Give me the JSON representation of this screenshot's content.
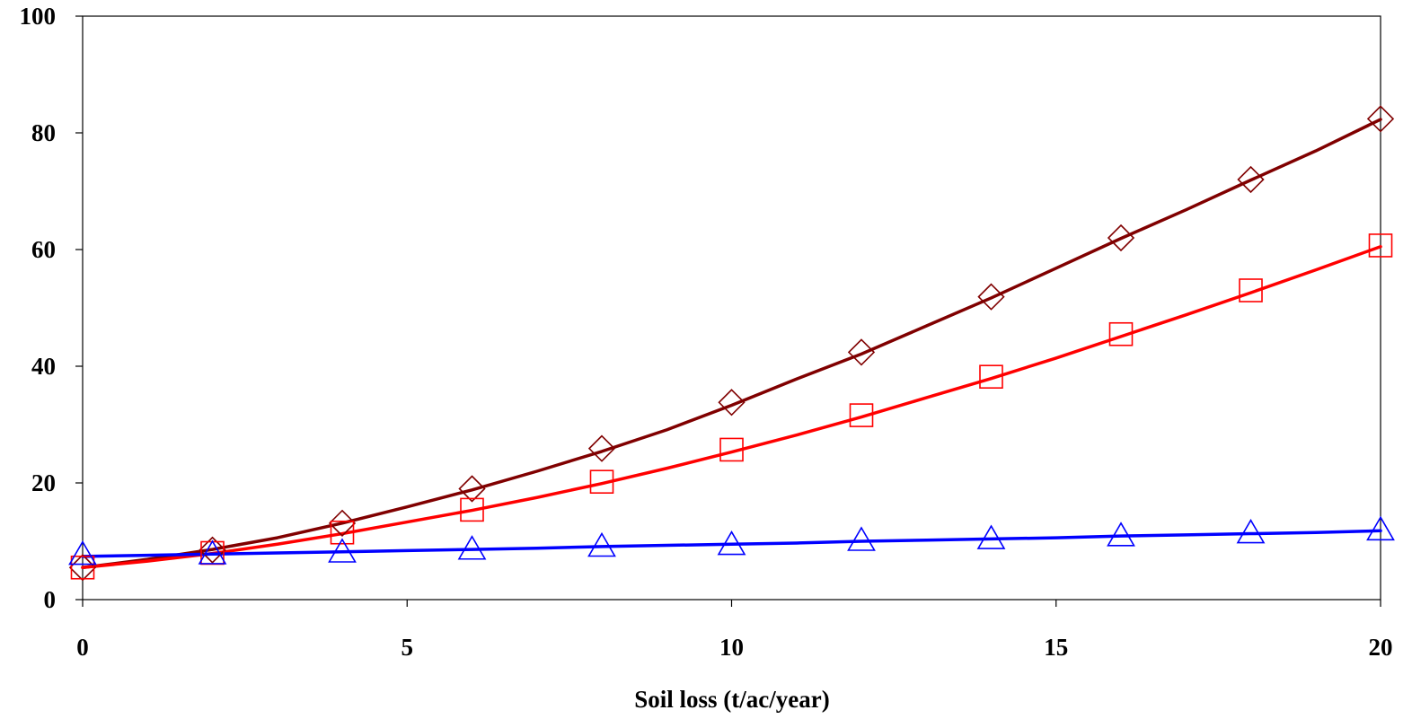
{
  "chart_data": {
    "type": "line",
    "title": "",
    "xlabel": "Soil loss (t/ac/year)",
    "ylabel": "",
    "xlim": [
      0,
      20
    ],
    "ylim": [
      0,
      100
    ],
    "x_ticks": [
      0,
      5,
      10,
      15,
      20
    ],
    "y_ticks": [
      0,
      20,
      40,
      60,
      80,
      100
    ],
    "grid": false,
    "legend": "none",
    "series": [
      {
        "color": "#800000",
        "marker": "diamond",
        "line": {
          "x": [
            0,
            1,
            2,
            3,
            4,
            5,
            6,
            7,
            8,
            9,
            10,
            11,
            12,
            13,
            14,
            15,
            16,
            17,
            18,
            19,
            20
          ],
          "y": [
            5.5,
            6.9,
            8.6,
            10.6,
            13.1,
            15.9,
            18.8,
            22.0,
            25.4,
            29.1,
            33.3,
            37.8,
            42.1,
            46.9,
            51.7,
            56.8,
            61.9,
            66.8,
            71.9,
            76.9,
            82.3
          ]
        },
        "points": {
          "x": [
            0,
            2,
            4,
            6,
            8,
            10,
            12,
            14,
            16,
            18,
            20
          ],
          "y": [
            5.5,
            8.5,
            13.1,
            19.0,
            25.9,
            33.8,
            42.4,
            51.9,
            62.0,
            72.0,
            82.4
          ]
        }
      },
      {
        "color": "#FF0000",
        "marker": "square",
        "line": {
          "x": [
            0,
            1,
            2,
            3,
            4,
            5,
            6,
            7,
            8,
            9,
            10,
            11,
            12,
            13,
            14,
            15,
            16,
            17,
            18,
            19,
            20
          ],
          "y": [
            5.5,
            6.6,
            7.9,
            9.5,
            11.3,
            13.3,
            15.3,
            17.5,
            19.9,
            22.5,
            25.3,
            28.2,
            31.3,
            34.6,
            37.9,
            41.4,
            45.1,
            48.8,
            52.6,
            56.5,
            60.5
          ]
        },
        "points": {
          "x": [
            0,
            2,
            4,
            6,
            8,
            10,
            12,
            14,
            16,
            18,
            20
          ],
          "y": [
            5.5,
            8.0,
            11.5,
            15.4,
            20.2,
            25.7,
            31.6,
            38.2,
            45.5,
            53.0,
            60.7
          ]
        }
      },
      {
        "color": "#0000FF",
        "marker": "triangle",
        "line": {
          "x": [
            0,
            1,
            2,
            3,
            4,
            5,
            6,
            7,
            8,
            9,
            10,
            11,
            12,
            13,
            14,
            15,
            16,
            17,
            18,
            19,
            20
          ],
          "y": [
            7.4,
            7.6,
            7.8,
            8.0,
            8.2,
            8.4,
            8.6,
            8.8,
            9.1,
            9.3,
            9.5,
            9.7,
            10.0,
            10.2,
            10.4,
            10.6,
            10.9,
            11.1,
            11.3,
            11.5,
            11.8
          ]
        },
        "points": {
          "x": [
            0,
            2,
            4,
            6,
            8,
            10,
            12,
            14,
            16,
            18,
            20
          ],
          "y": [
            7.6,
            7.7,
            8.0,
            8.5,
            9.0,
            9.3,
            10.0,
            10.3,
            10.8,
            11.3,
            11.8
          ]
        }
      }
    ]
  }
}
